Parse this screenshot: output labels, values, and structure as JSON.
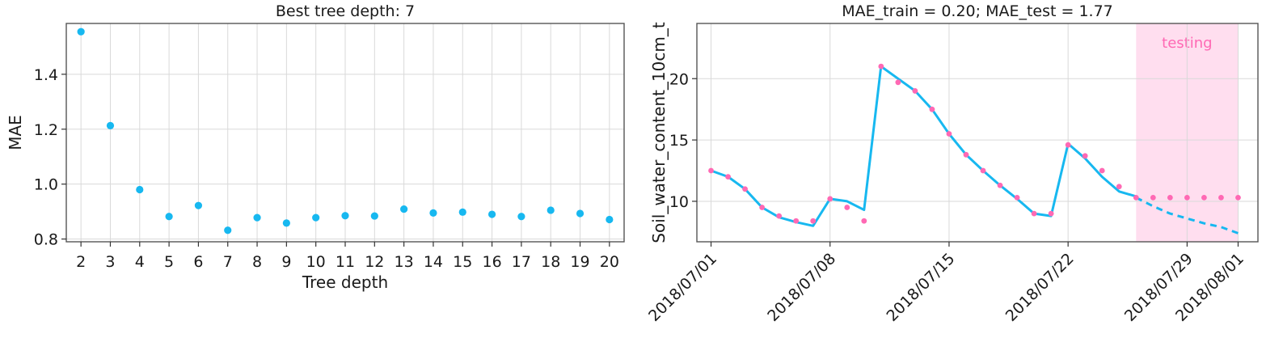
{
  "chart_data": [
    {
      "type": "scatter",
      "title": "Best tree depth: 7",
      "xlabel": "Tree depth",
      "ylabel": "MAE",
      "xlim": [
        1.5,
        20.5
      ],
      "ylim": [
        0.79,
        1.585
      ],
      "grid": true,
      "x_ticks": [
        2,
        3,
        4,
        5,
        6,
        7,
        8,
        9,
        10,
        11,
        12,
        13,
        14,
        15,
        16,
        17,
        18,
        19,
        20
      ],
      "y_ticks": [
        0.8,
        1.0,
        1.2,
        1.4
      ],
      "y_tick_labels": [
        "0.8",
        "1.0",
        "1.2",
        "1.4"
      ],
      "series": [
        {
          "color": "#17b8f0",
          "x": [
            2,
            3,
            4,
            5,
            6,
            7,
            8,
            9,
            10,
            11,
            12,
            13,
            14,
            15,
            16,
            17,
            18,
            19,
            20
          ],
          "y": [
            1.555,
            1.213,
            0.98,
            0.882,
            0.922,
            0.832,
            0.878,
            0.858,
            0.878,
            0.885,
            0.884,
            0.909,
            0.895,
            0.898,
            0.89,
            0.882,
            0.905,
            0.893,
            0.871
          ]
        }
      ]
    },
    {
      "type": "line",
      "title": "MAE_train = 0.20; MAE_test = 1.77",
      "xlabel": "",
      "ylabel": "Soil_water_content_10cm_t",
      "xlim": [
        "2018-06-30T04:00",
        "2018-08-02T04:00"
      ],
      "ylim": [
        6.7,
        24.5
      ],
      "grid": true,
      "x_ticks": [
        "2018/07/01",
        "2018/07/08",
        "2018/07/15",
        "2018/07/22",
        "2018/07/29",
        "2018/08/01"
      ],
      "y_ticks": [
        10,
        15,
        20
      ],
      "y_tick_labels": [
        "10",
        "15",
        "20"
      ],
      "shaded_region": {
        "label": "testing",
        "x_start": "2018-07-26",
        "x_end": "2018-08-01",
        "color": "#ff69b4"
      },
      "series": [
        {
          "style": "solid-line",
          "color": "#17b8f0",
          "x": [
            "2018-07-01",
            "2018-07-02",
            "2018-07-03",
            "2018-07-04",
            "2018-07-05",
            "2018-07-06",
            "2018-07-07",
            "2018-07-08",
            "2018-07-09",
            "2018-07-10",
            "2018-07-11",
            "2018-07-12",
            "2018-07-13",
            "2018-07-14",
            "2018-07-15",
            "2018-07-16",
            "2018-07-17",
            "2018-07-18",
            "2018-07-19",
            "2018-07-20",
            "2018-07-21",
            "2018-07-22",
            "2018-07-23",
            "2018-07-24",
            "2018-07-25",
            "2018-07-26"
          ],
          "y": [
            12.5,
            12.0,
            11.0,
            9.5,
            8.7,
            8.3,
            8.0,
            10.2,
            10.0,
            9.3,
            21.0,
            20.0,
            19.0,
            17.5,
            15.5,
            13.8,
            12.5,
            11.3,
            10.2,
            9.0,
            8.8,
            14.7,
            13.5,
            12.0,
            10.8,
            10.4
          ]
        },
        {
          "style": "dashed-line",
          "color": "#17b8f0",
          "x": [
            "2018-07-26",
            "2018-07-27",
            "2018-07-28",
            "2018-07-29",
            "2018-07-30",
            "2018-07-31",
            "2018-08-01"
          ],
          "y": [
            10.3,
            9.6,
            9.0,
            8.6,
            8.2,
            7.9,
            7.4
          ]
        },
        {
          "style": "markers",
          "color": "#ff69b4",
          "x": [
            "2018-07-01",
            "2018-07-02",
            "2018-07-03",
            "2018-07-04",
            "2018-07-05",
            "2018-07-06",
            "2018-07-07",
            "2018-07-08",
            "2018-07-09",
            "2018-07-10",
            "2018-07-11",
            "2018-07-12",
            "2018-07-13",
            "2018-07-14",
            "2018-07-15",
            "2018-07-16",
            "2018-07-17",
            "2018-07-18",
            "2018-07-19",
            "2018-07-20",
            "2018-07-21",
            "2018-07-22",
            "2018-07-23",
            "2018-07-24",
            "2018-07-25",
            "2018-07-26",
            "2018-07-27",
            "2018-07-28",
            "2018-07-29",
            "2018-07-30",
            "2018-07-31",
            "2018-08-01"
          ],
          "y": [
            12.5,
            12.0,
            11.0,
            9.5,
            8.8,
            8.4,
            8.4,
            10.2,
            9.5,
            8.4,
            21.0,
            19.7,
            19.0,
            17.5,
            15.5,
            13.8,
            12.5,
            11.3,
            10.3,
            9.0,
            9.0,
            14.6,
            13.7,
            12.5,
            11.2,
            10.3,
            10.3,
            10.3,
            10.3,
            10.3,
            10.3,
            10.3
          ]
        }
      ]
    }
  ]
}
